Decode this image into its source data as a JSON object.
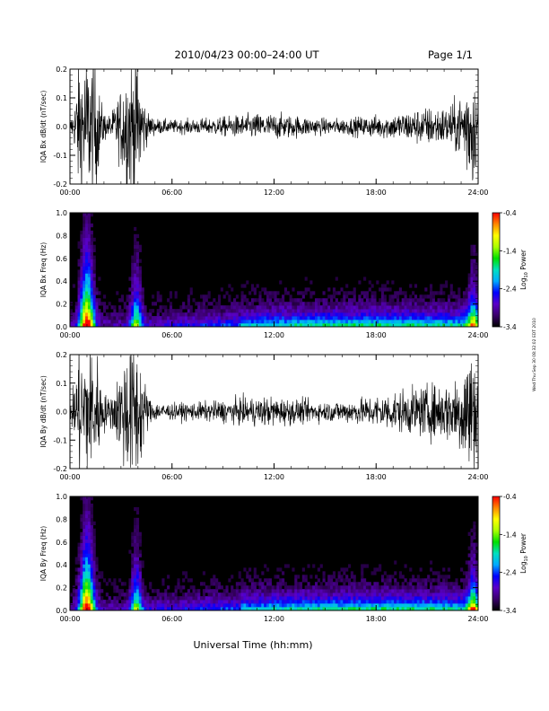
{
  "header": {
    "title": "2010/04/23  00:00–24:00 UT",
    "page": "Page 1/1"
  },
  "footer": {
    "xlabel": "Universal Time (hh:mm)"
  },
  "side_note": "Wed Thu Sep 30 08:32:02 EDT 2010",
  "colors": {
    "trace": "#000000",
    "spectrogram_background": "#000000",
    "colormap": [
      "#000000",
      "#3a006a",
      "#5a00c8",
      "#0000ff",
      "#00aaff",
      "#00e0c0",
      "#00e000",
      "#aaff00",
      "#ffff00",
      "#ff8800",
      "#ff0000"
    ]
  },
  "chart_data": [
    {
      "type": "line",
      "panel": "Bx dB/dt",
      "ylabel": "IQA Bx dB/dt (nT/sec)",
      "x_range": [
        "00:00",
        "24:00"
      ],
      "xticks": [
        "00:00",
        "06:00",
        "12:00",
        "18:00",
        "24:00"
      ],
      "ylim": [
        -0.2,
        0.2
      ],
      "yticks": [
        "0.2",
        "0.1",
        "0.0",
        "-0.1",
        "-0.2"
      ],
      "grid": false,
      "envelope": {
        "x_hours": [
          0,
          0.25,
          0.35,
          0.5,
          1.0,
          1.5,
          1.8,
          2.2,
          2.5,
          3.0,
          3.3,
          3.6,
          4.0,
          4.3,
          4.6,
          5,
          6,
          8,
          10,
          11,
          12,
          13,
          14,
          15,
          16,
          17,
          18,
          19,
          20,
          21,
          22,
          22.5,
          23,
          23.3,
          23.6,
          24
        ],
        "amplitude": [
          0.02,
          0.06,
          0.12,
          0.22,
          0.22,
          0.22,
          0.08,
          0.03,
          0.05,
          0.12,
          0.2,
          0.22,
          0.22,
          0.1,
          0.04,
          0.025,
          0.02,
          0.025,
          0.035,
          0.04,
          0.04,
          0.035,
          0.03,
          0.025,
          0.025,
          0.03,
          0.035,
          0.04,
          0.05,
          0.06,
          0.06,
          0.07,
          0.1,
          0.15,
          0.22,
          0.08
        ]
      }
    },
    {
      "type": "heatmap",
      "panel": "Bx Freq",
      "ylabel": "IQA Bx Freq (Hz)",
      "x_range": [
        "00:00",
        "24:00"
      ],
      "xticks": [
        "00:00",
        "06:00",
        "12:00",
        "18:00",
        "24:00"
      ],
      "ylim": [
        0.0,
        1.0
      ],
      "yticks": [
        "1.0",
        "0.8",
        "0.6",
        "0.4",
        "0.2",
        "0.0"
      ],
      "colorbar": {
        "label": "Log10 Power",
        "label_text": "Log",
        "label_sub": "10",
        "label_rest": " Power",
        "range": [
          -3.4,
          -0.4
        ],
        "ticks": [
          "-0.4",
          "-1.4",
          "-2.4",
          "-3.4"
        ]
      },
      "grid": false
    },
    {
      "type": "line",
      "panel": "By dB/dt",
      "ylabel": "IQA By dB/dt (nT/sec)",
      "x_range": [
        "00:00",
        "24:00"
      ],
      "xticks": [
        "00:00",
        "06:00",
        "12:00",
        "18:00",
        "24:00"
      ],
      "ylim": [
        -0.2,
        0.2
      ],
      "yticks": [
        "0.2",
        "0.1",
        "0.0",
        "-0.1",
        "-0.2"
      ],
      "grid": false,
      "envelope": {
        "x_hours": [
          0,
          0.25,
          0.35,
          0.5,
          1.0,
          1.5,
          1.8,
          2.2,
          2.5,
          3.0,
          3.3,
          3.6,
          4.0,
          4.3,
          4.6,
          5,
          6,
          8,
          10,
          11,
          12,
          13,
          14,
          15,
          16,
          17,
          18,
          19,
          20,
          21,
          22,
          22.5,
          23,
          23.3,
          23.6,
          24
        ],
        "amplitude": [
          0.03,
          0.08,
          0.15,
          0.22,
          0.22,
          0.22,
          0.1,
          0.04,
          0.06,
          0.14,
          0.22,
          0.22,
          0.22,
          0.12,
          0.05,
          0.03,
          0.025,
          0.03,
          0.04,
          0.045,
          0.045,
          0.04,
          0.035,
          0.03,
          0.035,
          0.04,
          0.05,
          0.06,
          0.07,
          0.08,
          0.09,
          0.1,
          0.14,
          0.2,
          0.22,
          0.1
        ]
      }
    },
    {
      "type": "heatmap",
      "panel": "By Freq",
      "ylabel": "IQA By Freq (Hz)",
      "x_range": [
        "00:00",
        "24:00"
      ],
      "xticks": [
        "00:00",
        "06:00",
        "12:00",
        "18:00",
        "24:00"
      ],
      "ylim": [
        0.0,
        1.0
      ],
      "yticks": [
        "1.0",
        "0.8",
        "0.6",
        "0.4",
        "0.2",
        "0.0"
      ],
      "colorbar": {
        "label": "Log10 Power",
        "label_text": "Log",
        "label_sub": "10",
        "label_rest": " Power",
        "range": [
          -3.4,
          -0.4
        ],
        "ticks": [
          "-0.4",
          "-1.4",
          "-2.4",
          "-3.4"
        ]
      },
      "grid": false
    }
  ]
}
